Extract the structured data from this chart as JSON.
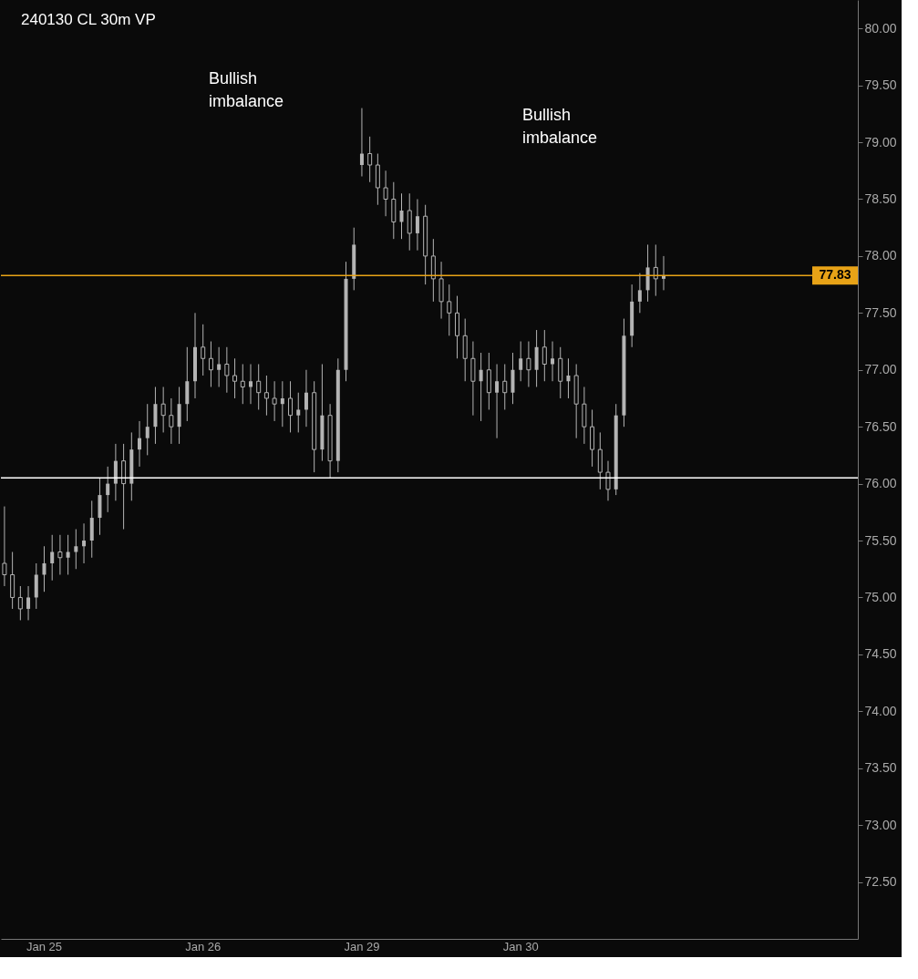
{
  "chart_data": {
    "type": "candlestick",
    "title": "240130 CL 30m VP",
    "color": "#b4b4b4",
    "categories": [
      null,
      null,
      null,
      null,
      null,
      "Jan 25",
      null,
      null,
      null,
      null,
      null,
      null,
      null,
      null,
      null,
      null,
      null,
      null,
      null,
      null,
      null,
      null,
      null,
      null,
      null,
      "Jan 26",
      null,
      null,
      null,
      null,
      null,
      null,
      null,
      null,
      null,
      null,
      null,
      null,
      null,
      null,
      null,
      null,
      null,
      null,
      null,
      "Jan 29",
      null,
      null,
      null,
      null,
      null,
      null,
      null,
      null,
      null,
      null,
      null,
      null,
      null,
      null,
      null,
      null,
      null,
      null,
      null,
      "Jan 30",
      null,
      null,
      null,
      null,
      null,
      null,
      null,
      null,
      null,
      null,
      null,
      null,
      null,
      null,
      null,
      null,
      null,
      null,
      null,
      null,
      null,
      null,
      null,
      null,
      null,
      null,
      null,
      null,
      null,
      null,
      null,
      null,
      null,
      null,
      null,
      null,
      null,
      null,
      null,
      null,
      null,
      null
    ],
    "ohlc": [
      [
        75.3,
        75.8,
        75.1,
        75.2
      ],
      [
        75.2,
        75.4,
        74.9,
        75.0
      ],
      [
        75.0,
        75.1,
        74.8,
        74.9
      ],
      [
        74.9,
        75.1,
        74.8,
        75.0
      ],
      [
        75.0,
        75.3,
        74.9,
        75.2
      ],
      [
        75.2,
        75.45,
        75.05,
        75.3
      ],
      [
        75.3,
        75.55,
        75.15,
        75.4
      ],
      [
        75.4,
        75.55,
        75.2,
        75.35
      ],
      [
        75.35,
        75.55,
        75.2,
        75.4
      ],
      [
        75.4,
        75.6,
        75.25,
        75.45
      ],
      [
        75.45,
        75.65,
        75.3,
        75.5
      ],
      [
        75.5,
        75.85,
        75.35,
        75.7
      ],
      [
        75.7,
        76.05,
        75.55,
        75.9
      ],
      [
        75.9,
        76.15,
        75.75,
        76.0
      ],
      [
        76.0,
        76.35,
        75.85,
        76.2
      ],
      [
        76.2,
        76.35,
        75.6,
        76.0
      ],
      [
        76.0,
        76.45,
        75.85,
        76.3
      ],
      [
        76.3,
        76.55,
        76.15,
        76.4
      ],
      [
        76.4,
        76.7,
        76.25,
        76.5
      ],
      [
        76.5,
        76.85,
        76.35,
        76.7
      ],
      [
        76.7,
        76.85,
        76.45,
        76.6
      ],
      [
        76.6,
        76.75,
        76.35,
        76.5
      ],
      [
        76.5,
        76.85,
        76.35,
        76.7
      ],
      [
        76.7,
        77.2,
        76.55,
        76.9
      ],
      [
        76.9,
        77.5,
        76.75,
        77.2
      ],
      [
        77.2,
        77.4,
        76.95,
        77.1
      ],
      [
        77.1,
        77.25,
        76.85,
        77.0
      ],
      [
        77.0,
        77.2,
        76.85,
        77.05
      ],
      [
        77.05,
        77.2,
        76.8,
        76.95
      ],
      [
        76.95,
        77.1,
        76.75,
        76.9
      ],
      [
        76.9,
        77.05,
        76.7,
        76.85
      ],
      [
        76.85,
        77.05,
        76.7,
        76.9
      ],
      [
        76.9,
        77.05,
        76.65,
        76.8
      ],
      [
        76.8,
        76.95,
        76.6,
        76.75
      ],
      [
        76.75,
        76.9,
        76.55,
        76.7
      ],
      [
        76.7,
        76.9,
        76.5,
        76.75
      ],
      [
        76.75,
        76.9,
        76.45,
        76.6
      ],
      [
        76.6,
        76.8,
        76.45,
        76.65
      ],
      [
        76.65,
        77.0,
        76.5,
        76.8
      ],
      [
        76.8,
        76.9,
        76.1,
        76.3
      ],
      [
        76.3,
        77.05,
        76.2,
        76.6
      ],
      [
        76.6,
        76.7,
        76.05,
        76.2
      ],
      [
        76.2,
        77.1,
        76.1,
        77.0
      ],
      [
        77.0,
        77.95,
        76.9,
        77.8
      ],
      [
        77.8,
        78.25,
        77.7,
        78.1
      ],
      [
        78.8,
        79.3,
        78.7,
        78.9
      ],
      [
        78.9,
        79.05,
        78.65,
        78.8
      ],
      [
        78.8,
        78.9,
        78.45,
        78.6
      ],
      [
        78.6,
        78.75,
        78.35,
        78.5
      ],
      [
        78.5,
        78.65,
        78.15,
        78.3
      ],
      [
        78.3,
        78.55,
        78.15,
        78.4
      ],
      [
        78.4,
        78.55,
        78.05,
        78.2
      ],
      [
        78.2,
        78.5,
        78.05,
        78.35
      ],
      [
        78.35,
        78.45,
        77.75,
        78.0
      ],
      [
        78.0,
        78.15,
        77.6,
        77.8
      ],
      [
        77.8,
        77.95,
        77.45,
        77.6
      ],
      [
        77.6,
        77.75,
        77.3,
        77.5
      ],
      [
        77.5,
        77.65,
        77.1,
        77.3
      ],
      [
        77.3,
        77.45,
        76.9,
        77.1
      ],
      [
        77.1,
        77.25,
        76.6,
        76.9
      ],
      [
        76.9,
        77.15,
        76.55,
        77.0
      ],
      [
        77.0,
        77.15,
        76.65,
        76.8
      ],
      [
        76.8,
        77.05,
        76.4,
        76.9
      ],
      [
        76.9,
        77.05,
        76.65,
        76.8
      ],
      [
        76.8,
        77.15,
        76.7,
        77.0
      ],
      [
        77.0,
        77.25,
        76.9,
        77.1
      ],
      [
        77.1,
        77.25,
        76.85,
        77.0
      ],
      [
        77.0,
        77.35,
        76.85,
        77.2
      ],
      [
        77.2,
        77.35,
        76.9,
        77.05
      ],
      [
        77.05,
        77.25,
        76.9,
        77.1
      ],
      [
        77.1,
        77.2,
        76.75,
        76.9
      ],
      [
        76.9,
        77.1,
        76.75,
        76.95
      ],
      [
        76.95,
        77.05,
        76.4,
        76.7
      ],
      [
        76.7,
        76.85,
        76.35,
        76.5
      ],
      [
        76.5,
        76.65,
        76.15,
        76.3
      ],
      [
        76.3,
        76.45,
        75.95,
        76.1
      ],
      [
        76.1,
        76.2,
        75.85,
        75.95
      ],
      [
        75.95,
        76.7,
        75.9,
        76.6
      ],
      [
        76.6,
        77.45,
        76.5,
        77.3
      ],
      [
        77.3,
        77.75,
        77.2,
        77.6
      ],
      [
        77.6,
        77.85,
        77.5,
        77.7
      ],
      [
        77.7,
        78.1,
        77.6,
        77.9
      ],
      [
        77.9,
        78.1,
        77.65,
        77.8
      ],
      [
        77.8,
        78.0,
        77.7,
        77.83
      ],
      null,
      null,
      null,
      null,
      null,
      null,
      null,
      null,
      null,
      null,
      null,
      null,
      null,
      null,
      null,
      null,
      null,
      null,
      null,
      null,
      null,
      null,
      null,
      null
    ],
    "ylim": [
      72.0,
      80.25
    ],
    "yticks": [
      {
        "value": 72.5,
        "label": "72.50"
      },
      {
        "value": 73,
        "label": "73.00"
      },
      {
        "value": 73.5,
        "label": "73.50"
      },
      {
        "value": 74,
        "label": "74.00"
      },
      {
        "value": 74.5,
        "label": "74.50"
      },
      {
        "value": 75,
        "label": "75.00"
      },
      {
        "value": 75.5,
        "label": "75.50"
      },
      {
        "value": 76,
        "label": "76.00"
      },
      {
        "value": 76.5,
        "label": "76.50"
      },
      {
        "value": 77,
        "label": "77.00"
      },
      {
        "value": 77.5,
        "label": "77.50"
      },
      {
        "value": 78,
        "label": "78.00"
      },
      {
        "value": 78.5,
        "label": "78.50"
      },
      {
        "value": 79,
        "label": "79.00"
      },
      {
        "value": 79.5,
        "label": "79.50"
      },
      {
        "value": 80,
        "label": "80.00"
      }
    ],
    "ref_lines": [
      {
        "axis": "y",
        "value": 77.83,
        "label": "77.83",
        "color": "#e8a317"
      },
      {
        "axis": "y",
        "value": 76.05,
        "color": "#ffffff"
      }
    ],
    "annotations": [
      "Bullish imbalance",
      "Bullish imbalance"
    ]
  }
}
